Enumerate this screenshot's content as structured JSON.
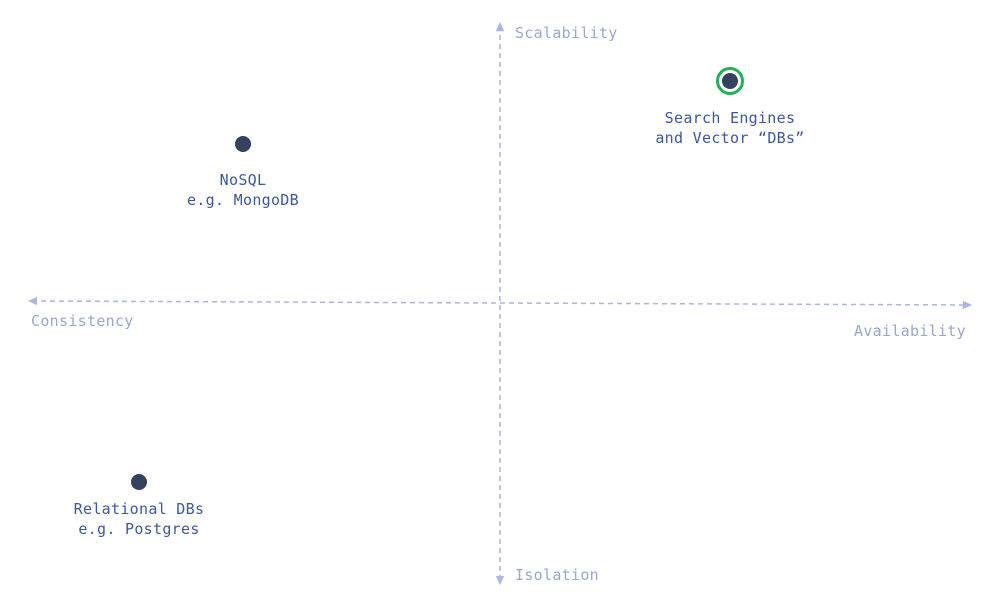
{
  "axes": {
    "top": "Scalability",
    "bottom": "Isolation",
    "left": "Consistency",
    "right": "Availability"
  },
  "points": [
    {
      "name": "nosql",
      "line1": "NoSQL",
      "line2": "e.g. MongoDB",
      "highlighted": false
    },
    {
      "name": "search-engines",
      "line1": "Search Engines",
      "line2": "and Vector “DBs”",
      "highlighted": true
    },
    {
      "name": "relational-dbs",
      "line1": "Relational DBs",
      "line2": "e.g. Postgres",
      "highlighted": false
    }
  ],
  "colors": {
    "axis": "#aab6dd",
    "axis_text": "#9aa7cf",
    "dot": "#34425f",
    "label": "#3e57a2",
    "highlight_ring": "#22b05a"
  }
}
